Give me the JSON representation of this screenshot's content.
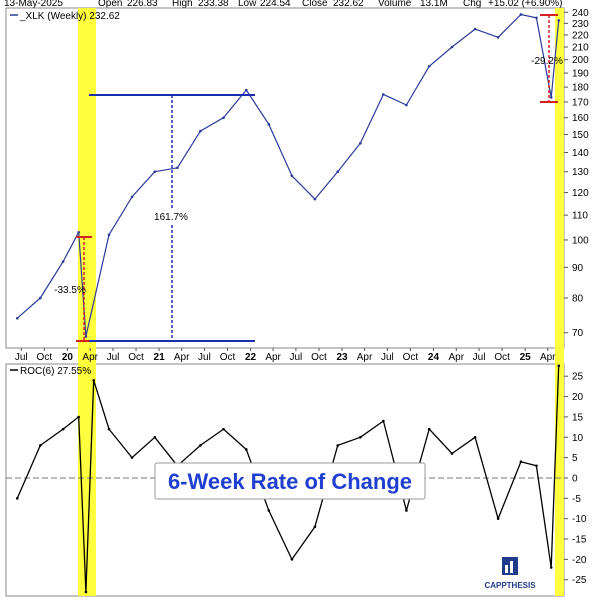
{
  "header": {
    "date": "13-May-2025",
    "open_label": "Open",
    "open": "226.83",
    "high_label": "High",
    "high": "233.38",
    "low_label": "Low",
    "low": "224.54",
    "close_label": "Close",
    "close": "232.62",
    "volume_label": "Volume",
    "volume": "13.1M",
    "chg_label": "Chg",
    "chg": "+15.02 (+6.90%)"
  },
  "price_panel": {
    "legend": "_XLK (Weekly) 232.62",
    "annotations": {
      "crash_2020": "-33.5%",
      "rally": "161.7%",
      "drop_2025": "-29.2%"
    }
  },
  "roc_panel": {
    "legend": "ROC(6) 27.55%",
    "callout": "6-Week Rate of Change"
  },
  "branding": {
    "logo_text": "CAPPTHESIS"
  },
  "colors": {
    "price": "#2a3a9a",
    "roc": "#000000",
    "highlight": "#ffff33",
    "annotation_blue": "#1b2fb0",
    "annotation_red": "#d42020",
    "callout_text": "#1f3fd0"
  },
  "chart_data": [
    {
      "type": "line",
      "series": [
        {
          "name": "_XLK (Weekly)",
          "x": [
            "2019-06",
            "2019-09",
            "2019-12",
            "2020-02",
            "2020-03",
            "2020-06",
            "2020-09",
            "2020-12",
            "2021-03",
            "2021-06",
            "2021-09",
            "2021-12",
            "2022-03",
            "2022-06",
            "2022-09",
            "2022-12",
            "2023-03",
            "2023-06",
            "2023-09",
            "2023-12",
            "2024-03",
            "2024-06",
            "2024-09",
            "2024-12",
            "2025-02",
            "2025-04",
            "2025-05"
          ],
          "values": [
            74,
            80,
            92,
            103,
            69,
            102,
            118,
            130,
            132,
            152,
            160,
            178,
            156,
            128,
            117,
            130,
            145,
            175,
            168,
            195,
            210,
            225,
            218,
            238,
            235,
            173,
            232.62
          ]
        }
      ],
      "x_tick_labels": [
        "Jul",
        "Oct",
        "20",
        "Apr",
        "Jul",
        "Oct",
        "21",
        "Apr",
        "Jul",
        "Oct",
        "22",
        "Apr",
        "Jul",
        "Oct",
        "23",
        "Apr",
        "Jul",
        "Oct",
        "24",
        "Apr",
        "Jul",
        "Oct",
        "25",
        "Apr"
      ],
      "y_ticks": [
        70,
        80,
        90,
        100,
        110,
        120,
        130,
        140,
        150,
        160,
        170,
        180,
        190,
        200,
        210,
        220,
        230,
        240
      ],
      "ylim": [
        66,
        244
      ],
      "y_scale": "log",
      "grid": false
    },
    {
      "type": "line",
      "series": [
        {
          "name": "ROC(6)",
          "x": [
            "2019-06",
            "2019-09",
            "2019-12",
            "2020-02",
            "2020-03",
            "2020-04",
            "2020-06",
            "2020-09",
            "2020-12",
            "2021-03",
            "2021-06",
            "2021-09",
            "2021-12",
            "2022-03",
            "2022-06",
            "2022-09",
            "2022-12",
            "2023-03",
            "2023-06",
            "2023-09",
            "2023-12",
            "2024-03",
            "2024-06",
            "2024-09",
            "2024-12",
            "2025-02",
            "2025-04",
            "2025-05"
          ],
          "values": [
            -5,
            8,
            12,
            15,
            -28,
            24,
            12,
            5,
            10,
            3,
            8,
            12,
            7,
            -8,
            -20,
            -12,
            8,
            10,
            14,
            -8,
            12,
            6,
            10,
            -10,
            4,
            3,
            -22,
            27.55
          ]
        }
      ],
      "y_ticks": [
        -25,
        -20,
        -15,
        -10,
        -5,
        0,
        5,
        10,
        15,
        20,
        25
      ],
      "ylim": [
        -29,
        28
      ],
      "grid": false
    }
  ]
}
